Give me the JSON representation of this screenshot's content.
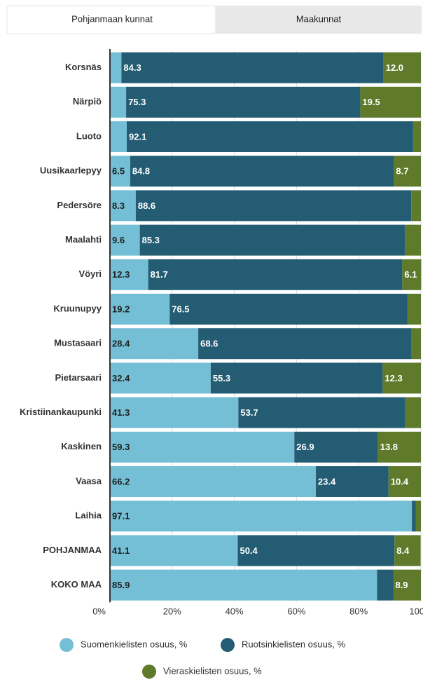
{
  "tabs": [
    "Pohjanmaan kunnat",
    "Maakunnat"
  ],
  "chart_data": {
    "type": "bar",
    "orientation": "horizontal",
    "stacked": true,
    "categories": [
      "Korsnäs",
      "Närpiö",
      "Luoto",
      "Uusikaarlepyy",
      "Pedersöre",
      "Maalahti",
      "Vöyri",
      "Kruunupyy",
      "Mustasaari",
      "Pietarsaari",
      "Kristiinankaupunki",
      "Kaskinen",
      "Vaasa",
      "Laihia",
      "POHJANMAA",
      "KOKO MAA"
    ],
    "series": [
      {
        "name": "Suomenkielisten osuus, %",
        "color": "#74bfd6",
        "values": [
          3.7,
          5.2,
          5.4,
          6.5,
          8.3,
          9.6,
          12.3,
          19.2,
          28.4,
          32.4,
          41.3,
          59.3,
          66.2,
          97.1,
          41.1,
          85.9
        ]
      },
      {
        "name": "Ruotsinkielisten osuus, %",
        "color": "#245d73",
        "values": [
          84.3,
          75.3,
          92.1,
          84.8,
          88.6,
          85.3,
          81.7,
          76.5,
          68.6,
          55.3,
          53.7,
          26.9,
          23.4,
          1.3,
          50.4,
          5.2
        ]
      },
      {
        "name": "Vieraskielisten osuus, %",
        "color": "#5e7a2a",
        "values": [
          12.0,
          19.5,
          2.5,
          8.7,
          3.1,
          5.1,
          6.1,
          4.3,
          3.0,
          12.3,
          5.0,
          13.8,
          10.4,
          1.6,
          8.4,
          8.9
        ],
        "value_labels": [
          "12.0",
          "19.5",
          null,
          "8.7",
          null,
          null,
          "6.1",
          null,
          null,
          "12.3",
          null,
          "13.8",
          "10.4",
          null,
          "8.4",
          "8.9"
        ]
      }
    ],
    "xlim": [
      0,
      100
    ],
    "xticks": [
      {
        "value": 0,
        "label": "0%"
      },
      {
        "value": 20,
        "label": "20%"
      },
      {
        "value": 40,
        "label": "40%"
      },
      {
        "value": 60,
        "label": "60%"
      },
      {
        "value": 80,
        "label": "80%"
      },
      {
        "value": 100,
        "label": "100%"
      }
    ],
    "grid": true
  }
}
